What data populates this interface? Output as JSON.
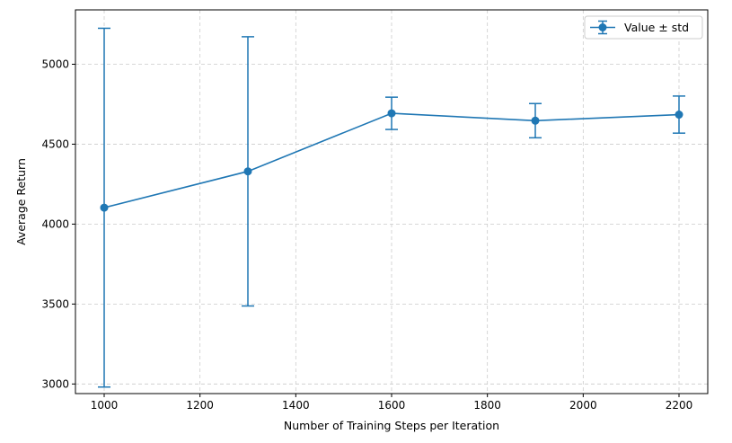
{
  "chart_data": {
    "type": "line",
    "x": [
      1000,
      1300,
      1600,
      1900,
      2200
    ],
    "series": [
      {
        "name": "Value ± std",
        "values": [
          4103,
          4330,
          4693,
          4647,
          4685
        ],
        "error": [
          1122,
          842,
          101,
          107,
          116
        ]
      }
    ],
    "xlabel": "Number of Training Steps per Iteration",
    "ylabel": "Average Return",
    "xlim": [
      940,
      2260
    ],
    "ylim": [
      2940,
      5340
    ],
    "xticks": [
      1000,
      1200,
      1400,
      1600,
      1800,
      2000,
      2200
    ],
    "yticks": [
      3000,
      3500,
      4000,
      4500,
      5000
    ],
    "grid": true,
    "grid_style": "dashed",
    "legend_position": "top-right",
    "colors": {
      "series": "#1f77b4",
      "grid": "#cccccc",
      "axes": "#000000"
    }
  }
}
